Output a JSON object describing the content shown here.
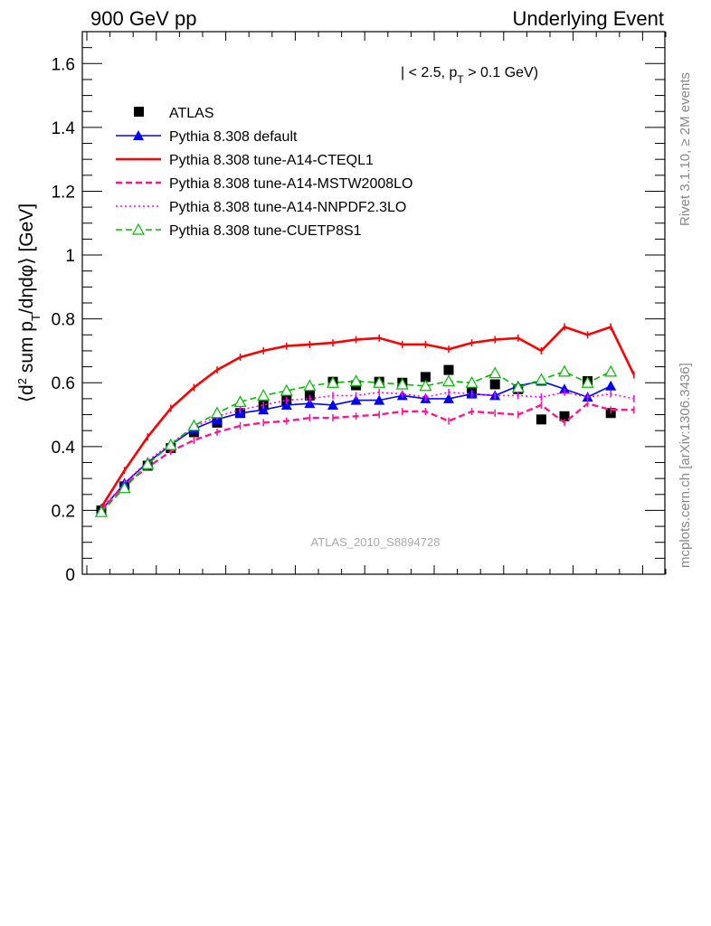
{
  "header": {
    "left": "900 GeV pp",
    "right": "Underlying Event"
  },
  "side_labels": {
    "rivet": "Rivet 3.1.10, ≥ 2M events",
    "mcplots": "mcplots.cern.ch [arXiv:1306.3436]"
  },
  "watermark": "ATLAS_2010_S8894728",
  "cuts_text": "| < 2.5, p_T > 0.1 GeV)",
  "chart_data": {
    "type": "line",
    "title": "",
    "ylabel": "⟨d² sum p_T/dηdφ⟩ [GeV]",
    "xlabel": "",
    "ylim": [
      0,
      1.7
    ],
    "yticks": [
      "0",
      "0.2",
      "0.4",
      "0.6",
      "0.8",
      "1",
      "1.2",
      "1.4",
      "1.6"
    ],
    "x": [
      1,
      2,
      3,
      4,
      5,
      6,
      7,
      8,
      9,
      10,
      11,
      12,
      13,
      14,
      15,
      16,
      17,
      18,
      19,
      20,
      21,
      22,
      23,
      24,
      25
    ],
    "legend_position": "top-left",
    "grid": false,
    "series": [
      {
        "name": "ATLAS",
        "style": "marker",
        "color": "#000000",
        "points": [
          [
            1,
            0.2
          ],
          [
            2,
            0.275
          ],
          [
            3,
            0.34
          ],
          [
            4,
            0.395
          ],
          [
            5,
            0.445
          ],
          [
            6,
            0.475
          ],
          [
            7,
            0.505
          ],
          [
            8,
            0.53
          ],
          [
            9,
            0.545
          ],
          [
            10,
            0.56
          ],
          [
            11,
            0.603
          ],
          [
            12,
            0.592
          ],
          [
            13,
            0.603
          ],
          [
            14,
            0.6
          ],
          [
            15,
            0.618
          ],
          [
            16,
            0.64
          ],
          [
            17,
            0.57
          ],
          [
            18,
            0.595
          ],
          [
            19,
            0.58
          ],
          [
            20,
            0.485
          ],
          [
            21,
            0.495
          ],
          [
            22,
            0.605
          ],
          [
            23,
            0.505
          ]
        ]
      },
      {
        "name": "Pythia 8.308 default",
        "style": "solid-triangle",
        "color": "#0000ff",
        "points": [
          [
            1,
            0.2
          ],
          [
            2,
            0.285
          ],
          [
            3,
            0.35
          ],
          [
            4,
            0.405
          ],
          [
            5,
            0.455
          ],
          [
            6,
            0.485
          ],
          [
            7,
            0.505
          ],
          [
            8,
            0.515
          ],
          [
            9,
            0.53
          ],
          [
            10,
            0.535
          ],
          [
            11,
            0.53
          ],
          [
            12,
            0.545
          ],
          [
            13,
            0.545
          ],
          [
            14,
            0.56
          ],
          [
            15,
            0.55
          ],
          [
            16,
            0.55
          ],
          [
            17,
            0.565
          ],
          [
            18,
            0.56
          ],
          [
            19,
            0.59
          ],
          [
            20,
            0.605
          ],
          [
            21,
            0.58
          ],
          [
            22,
            0.555
          ],
          [
            23,
            0.59
          ]
        ]
      },
      {
        "name": "Pythia 8.308 tune-A14-CTEQL1",
        "style": "solid",
        "color": "#ff0000",
        "points": [
          [
            1,
            0.21
          ],
          [
            2,
            0.325
          ],
          [
            3,
            0.43
          ],
          [
            4,
            0.52
          ],
          [
            5,
            0.585
          ],
          [
            6,
            0.64
          ],
          [
            7,
            0.68
          ],
          [
            8,
            0.7
          ],
          [
            9,
            0.715
          ],
          [
            10,
            0.72
          ],
          [
            11,
            0.725
          ],
          [
            12,
            0.735
          ],
          [
            13,
            0.74
          ],
          [
            14,
            0.72
          ],
          [
            15,
            0.72
          ],
          [
            16,
            0.705
          ],
          [
            17,
            0.725
          ],
          [
            18,
            0.735
          ],
          [
            19,
            0.74
          ],
          [
            20,
            0.7
          ],
          [
            21,
            0.775
          ],
          [
            22,
            0.75
          ],
          [
            23,
            0.775
          ],
          [
            24,
            0.625
          ]
        ]
      },
      {
        "name": "Pythia 8.308 tune-A14-MSTW2008LO",
        "style": "dashed",
        "color": "#ff1493",
        "points": [
          [
            1,
            0.2
          ],
          [
            2,
            0.28
          ],
          [
            3,
            0.335
          ],
          [
            4,
            0.385
          ],
          [
            5,
            0.42
          ],
          [
            6,
            0.445
          ],
          [
            7,
            0.465
          ],
          [
            8,
            0.475
          ],
          [
            9,
            0.48
          ],
          [
            10,
            0.49
          ],
          [
            11,
            0.49
          ],
          [
            12,
            0.495
          ],
          [
            13,
            0.5
          ],
          [
            14,
            0.51
          ],
          [
            15,
            0.51
          ],
          [
            16,
            0.48
          ],
          [
            17,
            0.51
          ],
          [
            18,
            0.505
          ],
          [
            19,
            0.5
          ],
          [
            20,
            0.53
          ],
          [
            21,
            0.475
          ],
          [
            22,
            0.535
          ],
          [
            23,
            0.515
          ],
          [
            24,
            0.515
          ]
        ]
      },
      {
        "name": "Pythia 8.308 tune-A14-NNPDF2.3LO",
        "style": "dotted",
        "color": "#ff00ff",
        "points": [
          [
            1,
            0.205
          ],
          [
            2,
            0.285
          ],
          [
            3,
            0.355
          ],
          [
            4,
            0.41
          ],
          [
            5,
            0.46
          ],
          [
            6,
            0.495
          ],
          [
            7,
            0.515
          ],
          [
            8,
            0.53
          ],
          [
            9,
            0.545
          ],
          [
            10,
            0.55
          ],
          [
            11,
            0.56
          ],
          [
            12,
            0.56
          ],
          [
            13,
            0.57
          ],
          [
            14,
            0.565
          ],
          [
            15,
            0.555
          ],
          [
            16,
            0.57
          ],
          [
            17,
            0.565
          ],
          [
            18,
            0.56
          ],
          [
            19,
            0.56
          ],
          [
            20,
            0.555
          ],
          [
            21,
            0.57
          ],
          [
            22,
            0.555
          ],
          [
            23,
            0.565
          ],
          [
            24,
            0.55
          ]
        ]
      },
      {
        "name": "Pythia 8.308 tune-CUETP8S1",
        "style": "dashed-open-triangle",
        "color": "#00bb00",
        "points": [
          [
            1,
            0.195
          ],
          [
            2,
            0.27
          ],
          [
            3,
            0.345
          ],
          [
            4,
            0.405
          ],
          [
            5,
            0.465
          ],
          [
            6,
            0.505
          ],
          [
            7,
            0.54
          ],
          [
            8,
            0.56
          ],
          [
            9,
            0.575
          ],
          [
            10,
            0.59
          ],
          [
            11,
            0.6
          ],
          [
            12,
            0.605
          ],
          [
            13,
            0.6
          ],
          [
            14,
            0.595
          ],
          [
            15,
            0.59
          ],
          [
            16,
            0.605
          ],
          [
            17,
            0.6
          ],
          [
            18,
            0.63
          ],
          [
            19,
            0.585
          ],
          [
            20,
            0.61
          ],
          [
            21,
            0.635
          ],
          [
            22,
            0.6
          ],
          [
            23,
            0.635
          ]
        ]
      }
    ]
  }
}
